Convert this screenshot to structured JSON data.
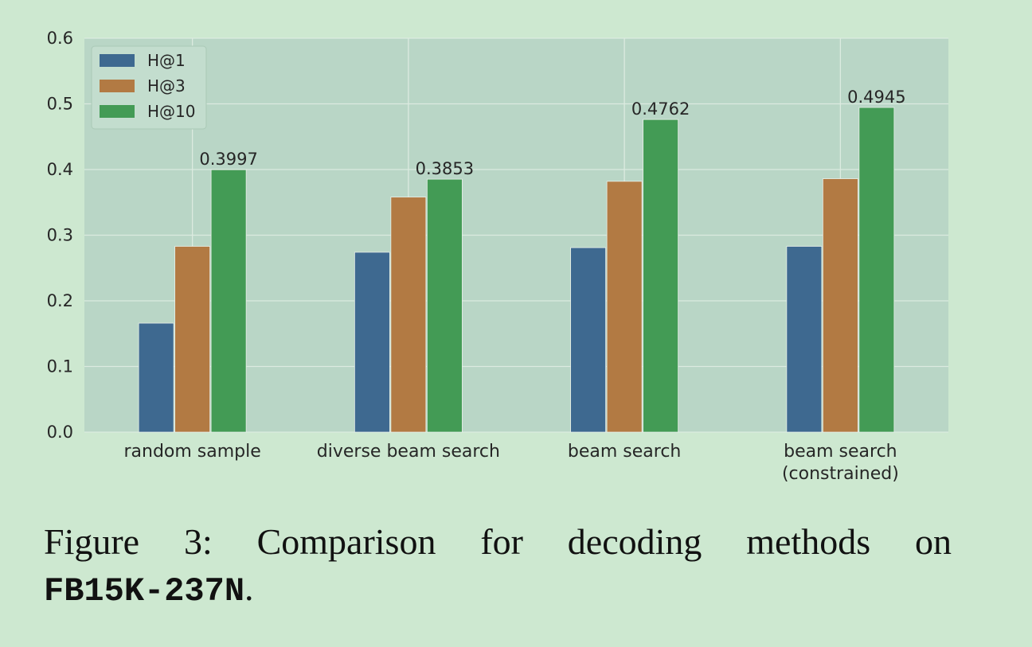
{
  "chart_data": {
    "type": "bar",
    "categories": [
      "random sample",
      "diverse beam search",
      "beam search",
      "beam search\n(constrained)"
    ],
    "series": [
      {
        "name": "H@1",
        "color": "#3e6990",
        "values": [
          0.166,
          0.274,
          0.281,
          0.283
        ]
      },
      {
        "name": "H@3",
        "color": "#b27a43",
        "values": [
          0.283,
          0.358,
          0.382,
          0.386
        ]
      },
      {
        "name": "H@10",
        "color": "#439b55",
        "values": [
          0.3997,
          0.3853,
          0.4762,
          0.4945
        ]
      }
    ],
    "data_labels": {
      "series": "H@10",
      "texts": [
        "0.3997",
        "0.3853",
        "0.4762",
        "0.4945"
      ]
    },
    "ylim": [
      0,
      0.6
    ],
    "yticks": [
      "0.0",
      "0.1",
      "0.2",
      "0.3",
      "0.4",
      "0.5",
      "0.6"
    ],
    "grid": true,
    "legend": "top-left",
    "plot_background": "#b9d6c6",
    "grid_color": "#dcebe0"
  },
  "caption": {
    "words": [
      "Figure",
      "3:",
      "Comparison",
      "for",
      "decoding",
      "methods",
      "on"
    ],
    "dataset": "FB15K-237N",
    "end": "."
  }
}
